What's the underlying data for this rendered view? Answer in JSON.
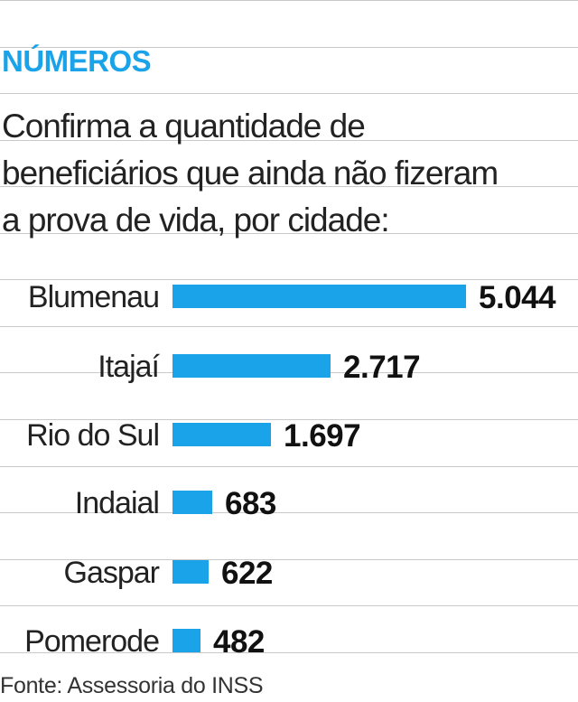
{
  "heading": "NÚMEROS",
  "subtitle_lines": [
    "Confirma a quantidade de",
    "beneficiários que ainda não fizeram",
    "a prova de vida, por cidade:"
  ],
  "source": "Fonte: Assessoria do INSS",
  "colors": {
    "accent": "#1aa3e8",
    "text": "#222222",
    "rule": "#c9c9c9"
  },
  "chart_data": {
    "type": "bar",
    "orientation": "horizontal",
    "categories": [
      "Blumenau",
      "Itajaí",
      "Rio do Sul",
      "Indaial",
      "Gaspar",
      "Pomerode"
    ],
    "values": [
      5044,
      2717,
      1697,
      683,
      622,
      482
    ],
    "value_labels": [
      "5.044",
      "2.717",
      "1.697",
      "683",
      "622",
      "482"
    ],
    "title": "",
    "xlabel": "",
    "ylabel": "",
    "grid": false
  }
}
